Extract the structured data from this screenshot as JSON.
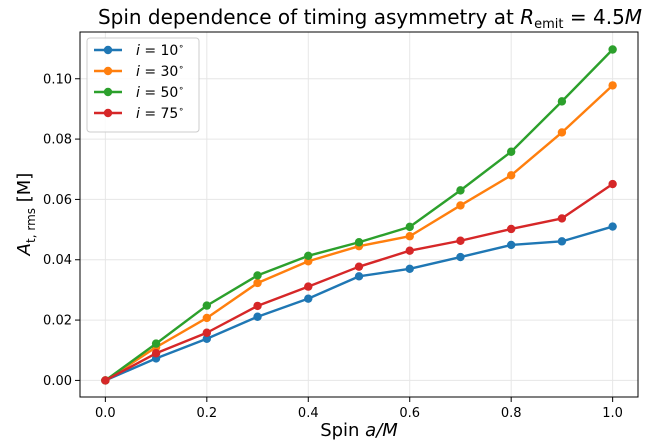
{
  "chart_data": {
    "type": "line",
    "title": "Spin dependence of timing asymmetry at R_emit = 4.5M",
    "title_parts": {
      "prefix": "Spin dependence of timing asymmetry at ",
      "R": "R",
      "R_sub": "emit",
      "equals": " = 4.5",
      "M": "M"
    },
    "xlabel": "Spin a/M",
    "xlabel_parts": {
      "prefix": "Spin ",
      "var": "a/M"
    },
    "ylabel": "A_t,rms [M]",
    "ylabel_parts": {
      "A": "A",
      "sub": "t, rms",
      "unit": " [M]"
    },
    "xlim": [
      -0.05,
      1.05
    ],
    "ylim": [
      -0.0055,
      0.1155
    ],
    "xticks": [
      0.0,
      0.2,
      0.4,
      0.6,
      0.8,
      1.0
    ],
    "xtick_labels": [
      "0.0",
      "0.2",
      "0.4",
      "0.6",
      "0.8",
      "1.0"
    ],
    "yticks": [
      0.0,
      0.02,
      0.04,
      0.06,
      0.08,
      0.1
    ],
    "ytick_labels": [
      "0.00",
      "0.02",
      "0.04",
      "0.06",
      "0.08",
      "0.10"
    ],
    "grid": true,
    "legend_position": "top-left",
    "x": [
      0.0,
      0.1,
      0.2,
      0.3,
      0.4,
      0.5,
      0.6,
      0.7,
      0.8,
      0.9,
      1.0
    ],
    "series": [
      {
        "name": "i = 10°",
        "name_var": "i",
        "name_val": " = 10",
        "name_sup": "∘",
        "color": "#1f77b4",
        "values": [
          0.0,
          0.0073,
          0.0138,
          0.0211,
          0.0271,
          0.0345,
          0.037,
          0.0409,
          0.0449,
          0.0461,
          0.051
        ]
      },
      {
        "name": "i = 30°",
        "name_var": "i",
        "name_val": " = 30",
        "name_sup": "∘",
        "color": "#ff7f0e",
        "values": [
          0.0,
          0.011,
          0.0207,
          0.0323,
          0.0395,
          0.0445,
          0.0478,
          0.058,
          0.068,
          0.0822,
          0.0978
        ]
      },
      {
        "name": "i = 50°",
        "name_var": "i",
        "name_val": " = 50",
        "name_sup": "∘",
        "color": "#2ca02c",
        "values": [
          0.0,
          0.0122,
          0.0248,
          0.0348,
          0.0413,
          0.0458,
          0.0509,
          0.063,
          0.0758,
          0.0925,
          0.1097
        ]
      },
      {
        "name": "i = 75°",
        "name_var": "i",
        "name_val": " = 75",
        "name_sup": "∘",
        "color": "#d62728",
        "values": [
          0.0,
          0.009,
          0.0158,
          0.0247,
          0.0311,
          0.0377,
          0.043,
          0.0463,
          0.0502,
          0.0537,
          0.0651
        ]
      }
    ]
  }
}
